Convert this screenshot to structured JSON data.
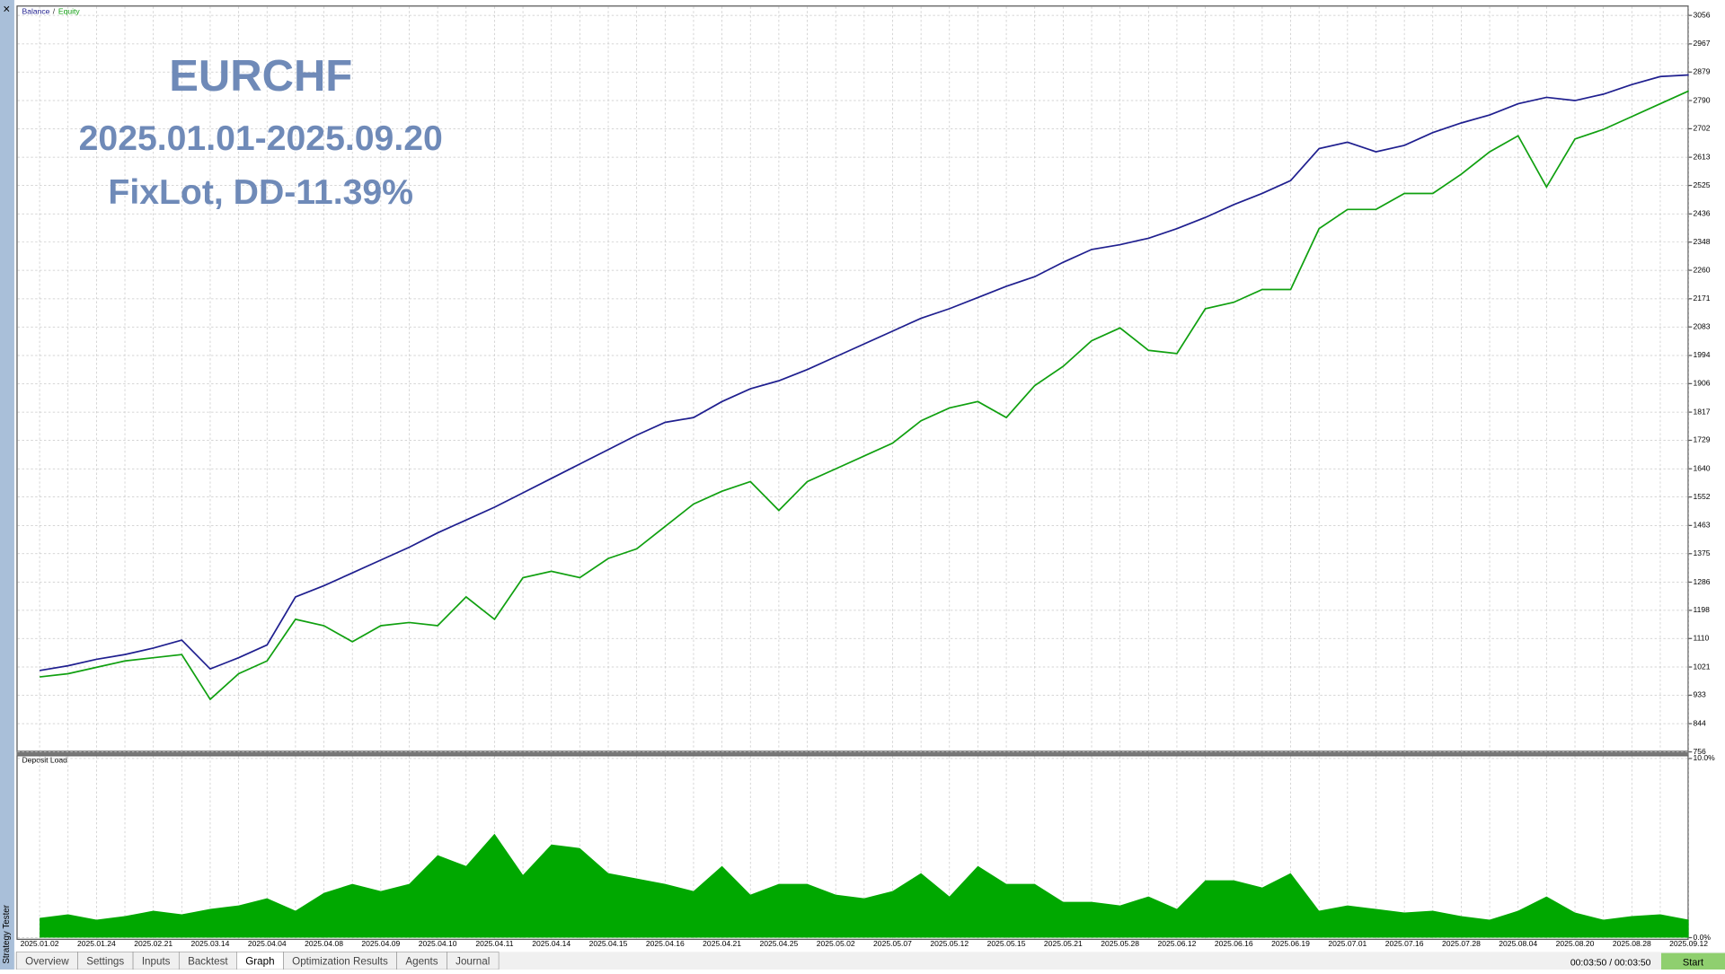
{
  "chart_data": [
    {
      "type": "line",
      "annotations": [
        "EURCHF",
        "2025.01.01-2025.09.20",
        "FixLot, DD-11.39%"
      ],
      "legend_separator": "/",
      "series": [
        {
          "name": "Balance",
          "color": "#1f1f8f",
          "values": [
            1010,
            1025,
            1045,
            1060,
            1080,
            1105,
            1015,
            1050,
            1090,
            1240,
            1275,
            1315,
            1355,
            1395,
            1440,
            1480,
            1520,
            1565,
            1610,
            1655,
            1700,
            1745,
            1785,
            1800,
            1850,
            1890,
            1915,
            1950,
            1990,
            2030,
            2070,
            2110,
            2140,
            2175,
            2210,
            2240,
            2285,
            2325,
            2340,
            2360,
            2390,
            2425,
            2465,
            2500,
            2540,
            2640,
            2660,
            2630,
            2650,
            2690,
            2720,
            2745,
            2780,
            2800,
            2790,
            2810,
            2840,
            2865,
            2870
          ]
        },
        {
          "name": "Equity",
          "color": "#10a010",
          "values": [
            990,
            1000,
            1020,
            1040,
            1050,
            1060,
            920,
            1000,
            1040,
            1170,
            1150,
            1100,
            1150,
            1160,
            1150,
            1240,
            1170,
            1300,
            1320,
            1300,
            1360,
            1390,
            1460,
            1530,
            1570,
            1600,
            1510,
            1600,
            1640,
            1680,
            1720,
            1790,
            1830,
            1850,
            1800,
            1900,
            1960,
            2040,
            2080,
            2010,
            2000,
            2140,
            2160,
            2200,
            2200,
            2390,
            2450,
            2450,
            2500,
            2500,
            2560,
            2630,
            2680,
            2520,
            2670,
            2700,
            2740,
            2780,
            2820
          ]
        }
      ],
      "ylim": [
        756,
        3056
      ],
      "yticks": [
        756,
        844,
        933,
        1021,
        1110,
        1198,
        1286,
        1375,
        1463,
        1552,
        1640,
        1729,
        1817,
        1906,
        1994,
        2083,
        2171,
        2260,
        2348,
        2436,
        2525,
        2613,
        2702,
        2790,
        2879,
        2967,
        3056
      ],
      "grid": true
    },
    {
      "type": "area",
      "title": "Deposit Load",
      "color": "#00a800",
      "categories": [
        "2025.01.02",
        null,
        "2025.01.24",
        null,
        "2025.02.21",
        null,
        "2025.03.14",
        null,
        "2025.04.04",
        null,
        "2025.04.08",
        null,
        "2025.04.09",
        null,
        "2025.04.10",
        null,
        "2025.04.11",
        null,
        "2025.04.14",
        null,
        "2025.04.15",
        null,
        "2025.04.16",
        null,
        "2025.04.21",
        null,
        "2025.04.25",
        null,
        "2025.05.02",
        null,
        "2025.05.07",
        null,
        "2025.05.12",
        null,
        "2025.05.15",
        null,
        "2025.05.21",
        null,
        "2025.05.28",
        null,
        "2025.06.12",
        null,
        "2025.06.16",
        null,
        "2025.06.19",
        null,
        "2025.07.01",
        null,
        "2025.07.16",
        null,
        "2025.07.28",
        null,
        "2025.08.04",
        null,
        "2025.08.20",
        null,
        "2025.08.28",
        null,
        "2025.09.12"
      ],
      "values": [
        1.1,
        1.3,
        1.0,
        1.2,
        1.5,
        1.3,
        1.6,
        1.8,
        2.2,
        1.5,
        2.5,
        3.0,
        2.6,
        3.0,
        4.6,
        4.0,
        5.8,
        3.5,
        5.2,
        5.0,
        3.6,
        3.3,
        3.0,
        2.6,
        4.0,
        2.4,
        3.0,
        3.0,
        2.4,
        2.2,
        2.6,
        3.6,
        2.3,
        4.0,
        3.0,
        3.0,
        2.0,
        2.0,
        1.8,
        2.3,
        1.6,
        3.2,
        3.2,
        2.8,
        3.6,
        1.5,
        1.8,
        1.6,
        1.4,
        1.5,
        1.2,
        1.0,
        1.5,
        2.3,
        1.4,
        1.0,
        1.2,
        1.3,
        1.0
      ],
      "ylim": [
        0,
        10
      ],
      "yticks": [
        {
          "value": 0,
          "label": "0.0%"
        },
        {
          "value": 10,
          "label": "10.0%"
        }
      ],
      "grid": true
    }
  ],
  "close_button": "×",
  "side_label": "Strategy Tester",
  "tabs": [
    "Overview",
    "Settings",
    "Inputs",
    "Backtest",
    "Graph",
    "Optimization Results",
    "Agents",
    "Journal"
  ],
  "active_tab": 4,
  "timer": "00:03:50 / 00:03:50",
  "start_button": "Start"
}
